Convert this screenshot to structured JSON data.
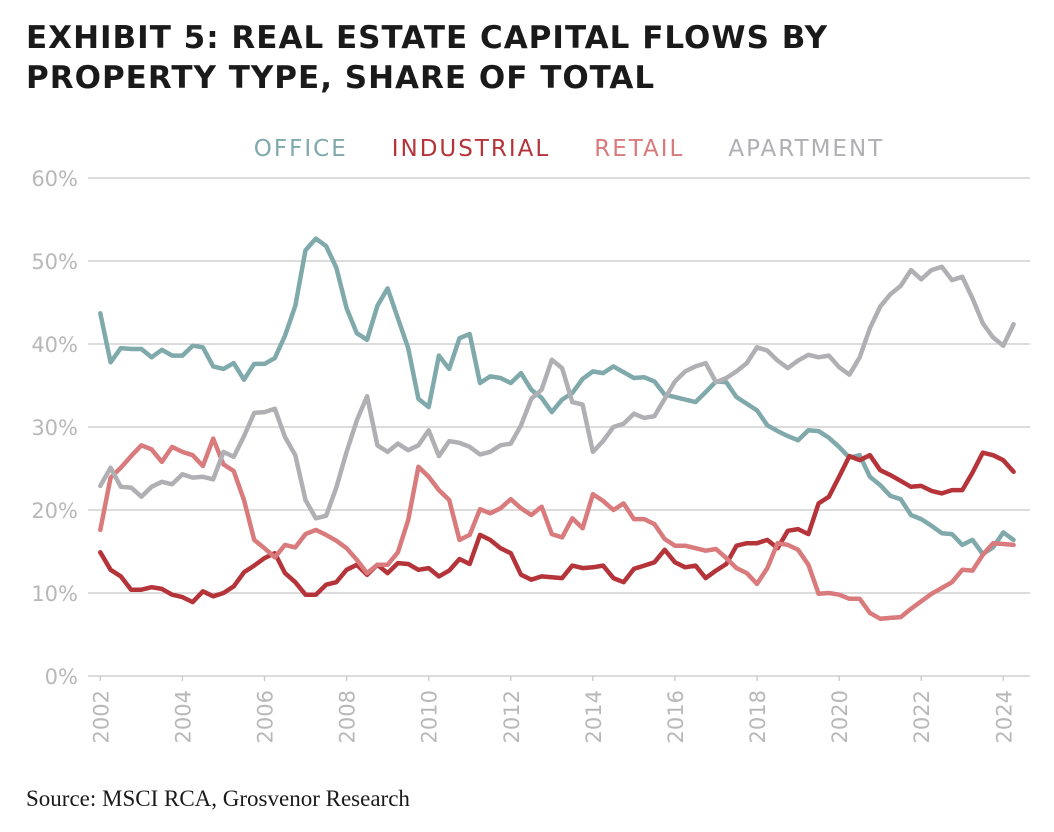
{
  "chart_data": {
    "type": "line",
    "title": [
      "EXHIBIT 5: REAL ESTATE CAPITAL FLOWS BY",
      "PROPERTY TYPE, SHARE OF TOTAL"
    ],
    "source": "Source: MSCI RCA, Grosvenor Research",
    "x": [
      2002,
      2002.25,
      2002.5,
      2002.75,
      2003,
      2003.25,
      2003.5,
      2003.75,
      2004,
      2004.25,
      2004.5,
      2004.75,
      2005,
      2005.25,
      2005.5,
      2005.75,
      2006,
      2006.25,
      2006.5,
      2006.75,
      2007,
      2007.25,
      2007.5,
      2007.75,
      2008,
      2008.25,
      2008.5,
      2008.75,
      2009,
      2009.25,
      2009.5,
      2009.75,
      2010,
      2010.25,
      2010.5,
      2010.75,
      2011,
      2011.25,
      2011.5,
      2011.75,
      2012,
      2012.25,
      2012.5,
      2012.75,
      2013,
      2013.25,
      2013.5,
      2013.75,
      2014,
      2014.25,
      2014.5,
      2014.75,
      2015,
      2015.25,
      2015.5,
      2015.75,
      2016,
      2016.25,
      2016.5,
      2016.75,
      2017,
      2017.25,
      2017.5,
      2017.75,
      2018,
      2018.25,
      2018.5,
      2018.75,
      2019,
      2019.25,
      2019.5,
      2019.75,
      2020,
      2020.25,
      2020.5,
      2020.75,
      2021,
      2021.25,
      2021.5,
      2021.75,
      2022,
      2022.25,
      2022.5,
      2022.75,
      2023,
      2023.25,
      2023.5,
      2023.75,
      2024,
      2024.25
    ],
    "series": [
      {
        "name": "OFFICE",
        "color": "#7fa9ab",
        "values": [
          43.7,
          37.8,
          39.5,
          39.4,
          39.4,
          38.4,
          39.3,
          38.6,
          38.6,
          39.8,
          39.6,
          37.3,
          37.0,
          37.7,
          35.7,
          37.6,
          37.6,
          38.3,
          41.0,
          44.6,
          51.3,
          52.7,
          51.8,
          49.2,
          44.3,
          41.3,
          40.5,
          44.6,
          46.7,
          43.1,
          39.5,
          33.4,
          32.4,
          38.6,
          37.0,
          40.7,
          41.2,
          35.3,
          36.1,
          35.9,
          35.3,
          36.5,
          34.5,
          33.5,
          31.8,
          33.3,
          34.1,
          35.8,
          36.7,
          36.5,
          37.3,
          36.6,
          35.9,
          36.0,
          35.5,
          33.9,
          33.6,
          33.3,
          33.0,
          34.2,
          35.5,
          35.4,
          33.6,
          32.8,
          32.0,
          30.2,
          29.5,
          28.9,
          28.4,
          29.6,
          29.5,
          28.7,
          27.6,
          26.3,
          26.6,
          24.0,
          23.0,
          21.7,
          21.3,
          19.4,
          18.9,
          18.1,
          17.2,
          17.1,
          15.8,
          16.4,
          14.7,
          15.5,
          17.3,
          16.4
        ]
      },
      {
        "name": "INDUSTRIAL",
        "color": "#b5343a",
        "values": [
          14.9,
          12.8,
          12.0,
          10.4,
          10.4,
          10.7,
          10.5,
          9.8,
          9.5,
          8.9,
          10.2,
          9.6,
          10.0,
          10.8,
          12.5,
          13.3,
          14.2,
          14.8,
          12.4,
          11.3,
          9.8,
          9.8,
          11.0,
          11.3,
          12.8,
          13.4,
          12.2,
          13.4,
          12.4,
          13.6,
          13.5,
          12.8,
          13.0,
          12.0,
          12.7,
          14.1,
          13.5,
          17.0,
          16.4,
          15.4,
          14.8,
          12.2,
          11.6,
          12.0,
          11.9,
          11.8,
          13.3,
          13.0,
          13.1,
          13.3,
          11.8,
          11.3,
          12.9,
          13.3,
          13.7,
          15.2,
          13.7,
          13.1,
          13.3,
          11.8,
          12.7,
          13.5,
          15.7,
          16.0,
          16.0,
          16.4,
          15.4,
          17.5,
          17.7,
          17.1,
          20.8,
          21.6,
          24.0,
          26.5,
          26.0,
          26.6,
          24.8,
          24.2,
          23.5,
          22.8,
          22.9,
          22.3,
          22.0,
          22.4,
          22.4,
          24.5,
          26.9,
          26.6,
          26.0,
          24.6
        ]
      },
      {
        "name": "RETAIL",
        "color": "#d97a7c",
        "values": [
          17.6,
          23.9,
          25.1,
          26.5,
          27.8,
          27.3,
          25.8,
          27.6,
          27.0,
          26.6,
          25.3,
          28.6,
          25.5,
          24.7,
          21.2,
          16.4,
          15.4,
          14.3,
          15.8,
          15.5,
          17.1,
          17.6,
          17.0,
          16.3,
          15.4,
          14.0,
          12.4,
          13.4,
          13.4,
          14.9,
          18.8,
          25.2,
          24.0,
          22.4,
          21.2,
          16.4,
          17.0,
          20.1,
          19.6,
          20.2,
          21.3,
          20.2,
          19.4,
          20.4,
          17.1,
          16.7,
          19.0,
          17.8,
          21.9,
          21.1,
          20.0,
          20.8,
          18.9,
          18.9,
          18.3,
          16.5,
          15.7,
          15.7,
          15.4,
          15.1,
          15.3,
          14.2,
          13.0,
          12.4,
          11.1,
          13.0,
          16.0,
          15.8,
          15.2,
          13.4,
          9.9,
          10.0,
          9.8,
          9.3,
          9.3,
          7.6,
          6.9,
          7.0,
          7.1,
          8.1,
          9.0,
          9.9,
          10.6,
          11.3,
          12.8,
          12.7,
          14.6,
          16.0,
          15.9,
          15.8
        ]
      },
      {
        "name": "APARTMENT",
        "color": "#b0b0b4",
        "values": [
          22.9,
          25.1,
          22.8,
          22.7,
          21.6,
          22.8,
          23.4,
          23.1,
          24.3,
          23.9,
          24.0,
          23.7,
          27.0,
          26.4,
          28.9,
          31.7,
          31.8,
          32.2,
          28.8,
          26.6,
          21.2,
          19.0,
          19.3,
          22.7,
          27.0,
          30.8,
          33.7,
          27.8,
          27.0,
          28.0,
          27.2,
          27.8,
          29.6,
          26.5,
          28.3,
          28.1,
          27.6,
          26.7,
          27.0,
          27.8,
          28.0,
          30.2,
          33.4,
          34.5,
          38.1,
          37.1,
          33.0,
          32.7,
          27.0,
          28.3,
          30.0,
          30.4,
          31.6,
          31.1,
          31.3,
          33.4,
          35.5,
          36.7,
          37.3,
          37.7,
          35.4,
          35.9,
          36.7,
          37.7,
          39.6,
          39.2,
          38.0,
          37.1,
          38.0,
          38.7,
          38.4,
          38.6,
          37.2,
          36.3,
          38.4,
          41.9,
          44.5,
          46.0,
          47.0,
          48.9,
          47.8,
          48.9,
          49.3,
          47.7,
          48.1,
          45.5,
          42.5,
          40.8,
          39.8,
          42.4
        ]
      }
    ],
    "xlim": [
      2001.7,
      2024.65
    ],
    "xticks": [
      2002,
      2004,
      2006,
      2008,
      2010,
      2012,
      2014,
      2016,
      2018,
      2020,
      2022,
      2024
    ],
    "ylim": [
      0,
      60
    ],
    "yticks": [
      {
        "value": 0,
        "label": "0%"
      },
      {
        "value": 10,
        "label": "10%"
      },
      {
        "value": 20,
        "label": "20%"
      },
      {
        "value": 30,
        "label": "30%"
      },
      {
        "value": 40,
        "label": "40%"
      },
      {
        "value": 50,
        "label": "50%"
      },
      {
        "value": 60,
        "label": "60%"
      }
    ],
    "grid": true,
    "legend": "top"
  }
}
